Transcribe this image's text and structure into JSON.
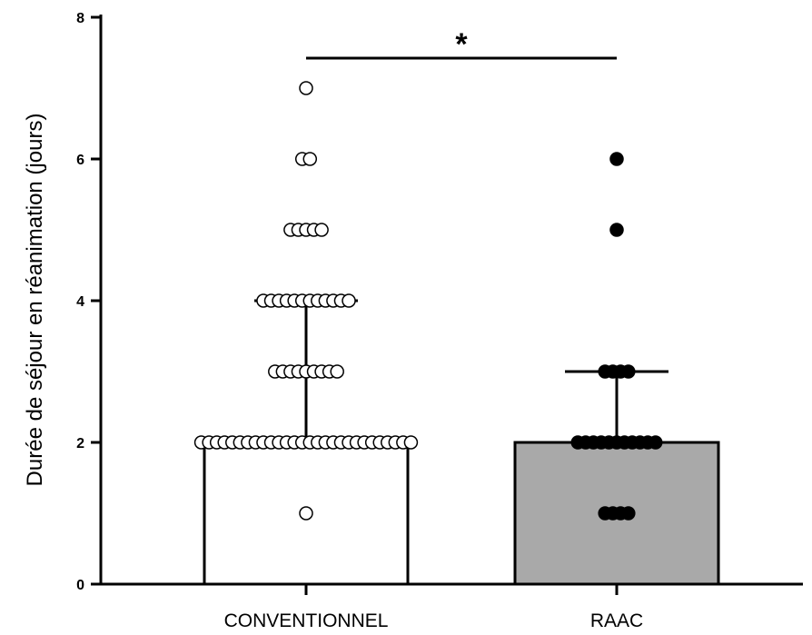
{
  "chart_data": {
    "type": "bar",
    "categories": [
      "CONVENTIONNEL",
      "RAAC"
    ],
    "ylabel": "Durée de séjour en réanimation (jours)",
    "xlabel": "",
    "ylim": [
      0,
      8
    ],
    "yticks": [
      "0",
      "2",
      "4",
      "6",
      "8"
    ],
    "series": [
      {
        "values": [
          2,
          2
        ],
        "error_upper": [
          4,
          3
        ],
        "bar_colors": [
          "#ffffff",
          "#a9a9a9"
        ]
      }
    ],
    "points": [
      {
        "category": "CONVENTIONNEL",
        "marker": "open-circle",
        "values": [
          7,
          6,
          6,
          5,
          5,
          5,
          5,
          5,
          4,
          4,
          4,
          4,
          4,
          4,
          4,
          4,
          4,
          4,
          4,
          4,
          3,
          3,
          3,
          3,
          3,
          3,
          3,
          3,
          3,
          2,
          2,
          2,
          2,
          2,
          2,
          2,
          2,
          2,
          2,
          2,
          2,
          2,
          2,
          2,
          2,
          2,
          2,
          2,
          2,
          2,
          2,
          2,
          2,
          2,
          2,
          2,
          2,
          1
        ]
      },
      {
        "category": "RAAC",
        "marker": "filled-circle",
        "values": [
          6,
          5,
          3,
          3,
          3,
          3,
          2,
          2,
          2,
          2,
          2,
          2,
          2,
          2,
          2,
          2,
          2,
          1,
          1,
          1,
          1
        ]
      }
    ],
    "annotations": [
      {
        "text": "*",
        "between": [
          "CONVENTIONNEL",
          "RAAC"
        ]
      }
    ]
  }
}
